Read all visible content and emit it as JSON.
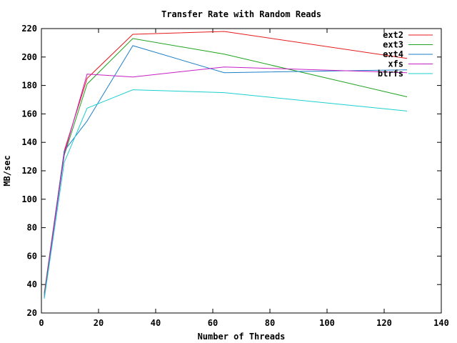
{
  "chart_data": {
    "type": "line",
    "title": "Transfer Rate with Random Reads",
    "xlabel": "Number of Threads",
    "ylabel": "MB/sec",
    "xlim": [
      0,
      140
    ],
    "ylim": [
      20,
      220
    ],
    "xticks": [
      0,
      20,
      40,
      60,
      80,
      100,
      120,
      140
    ],
    "yticks": [
      20,
      40,
      60,
      80,
      100,
      120,
      140,
      160,
      180,
      200,
      220
    ],
    "x": [
      1,
      8,
      16,
      32,
      64,
      128
    ],
    "grid": false,
    "legend_position": "top-right",
    "series": [
      {
        "name": "ext2",
        "color": "#e41a1c",
        "values": [
          34,
          134,
          185,
          216,
          218,
          199
        ]
      },
      {
        "name": "ext3",
        "color": "#1fa21f",
        "values": [
          33,
          131,
          181,
          213,
          202,
          172
        ]
      },
      {
        "name": "ext4",
        "color": "#1e80c8",
        "values": [
          32,
          134,
          155,
          208,
          189,
          191
        ]
      },
      {
        "name": "xfs",
        "color": "#c41fc4",
        "values": [
          31,
          132,
          188,
          186,
          193,
          189
        ]
      },
      {
        "name": "btrfs",
        "color": "#1ccece",
        "values": [
          30,
          126,
          164,
          177,
          175,
          162
        ]
      }
    ]
  }
}
